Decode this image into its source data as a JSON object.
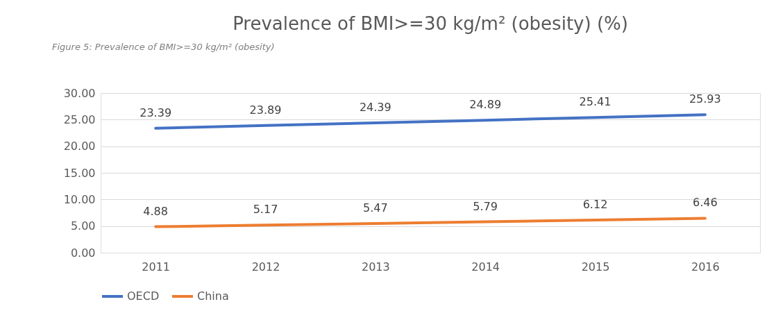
{
  "chart_data": {
    "type": "line",
    "title": "Prevalence of BMI>=30 kg/m² (obesity) (%)",
    "annotations": [
      "Figure 5: Prevalence of BMI>=30 kg/m² (obesity)"
    ],
    "categories": [
      "2011",
      "2012",
      "2013",
      "2014",
      "2015",
      "2016"
    ],
    "series": [
      {
        "name": "OECD",
        "color": "#4472c4",
        "values": [
          23.39,
          23.89,
          24.39,
          24.89,
          25.41,
          25.93
        ]
      },
      {
        "name": "China",
        "color": "#ed7d31",
        "values": [
          4.88,
          5.17,
          5.47,
          5.79,
          6.12,
          6.46
        ]
      }
    ],
    "ylim": [
      0,
      30
    ],
    "yticks": [
      {
        "value": 0,
        "label": "0.00"
      },
      {
        "value": 5,
        "label": "5.00"
      },
      {
        "value": 10,
        "label": "10.00"
      },
      {
        "value": 15,
        "label": "15.00"
      },
      {
        "value": 20,
        "label": "20.00"
      },
      {
        "value": 25,
        "label": "25.00"
      },
      {
        "value": 30,
        "label": "30.00"
      }
    ],
    "grid": "y",
    "legend": "bottom",
    "data_labels": true,
    "marker": "none",
    "line_style": "solid"
  }
}
